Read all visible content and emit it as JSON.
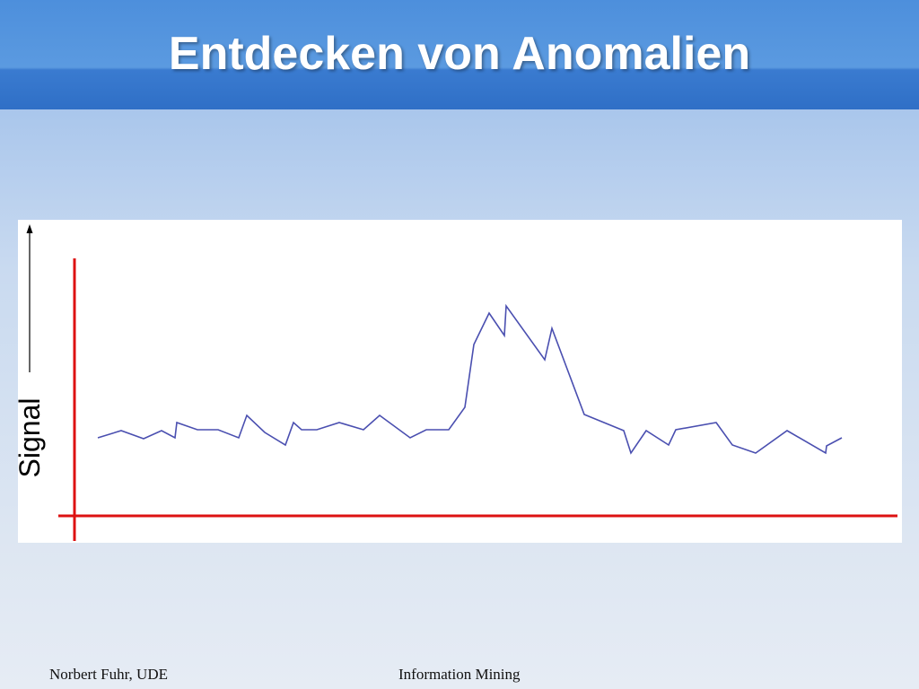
{
  "slide": {
    "title": "Entdecken von Anomalien",
    "footer_left": "Norbert Fuhr, UDE",
    "footer_center": "Information Mining"
  },
  "chart_data": {
    "type": "line",
    "y_label": "Signal",
    "color": "#4a4fb0",
    "x": [
      26,
      52,
      77,
      97,
      112,
      114,
      137,
      160,
      183,
      192,
      212,
      235,
      244,
      253,
      270,
      295,
      322,
      340,
      374,
      392,
      417,
      435,
      445,
      462,
      479,
      481,
      524,
      532,
      568,
      612,
      620,
      637,
      662,
      670,
      715,
      733,
      759,
      794,
      837,
      838,
      855
    ],
    "values": [
      87,
      95,
      86,
      95,
      87,
      104,
      96,
      96,
      87,
      112,
      93,
      79,
      104,
      96,
      96,
      104,
      96,
      112,
      87,
      96,
      96,
      121,
      191,
      226,
      201,
      234,
      174,
      209,
      113,
      95,
      70,
      95,
      79,
      96,
      104,
      79,
      70,
      95,
      70,
      78,
      87
    ],
    "xlim": [
      0,
      917
    ],
    "ylim": [
      0,
      287
    ]
  }
}
